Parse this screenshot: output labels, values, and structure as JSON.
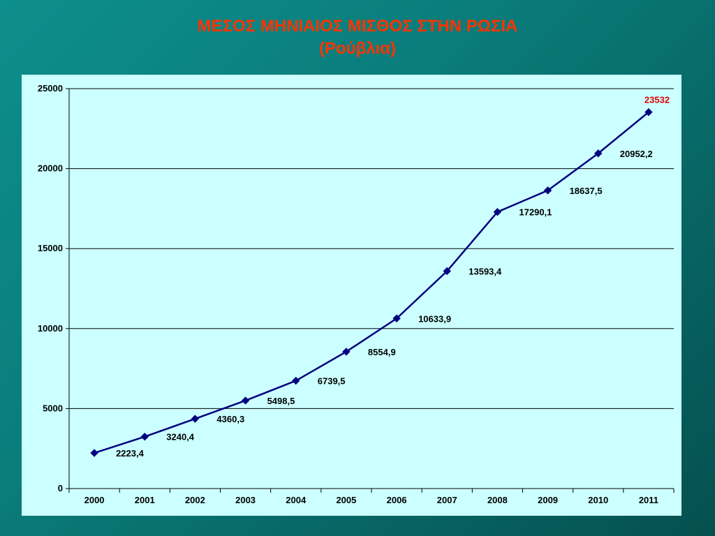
{
  "slide": {
    "title_line1": "ΜΕΣΟΣ ΜΗΝΙΑΙΟΣ ΜΙΣΘΟΣ ΣΤΗΝ ΡΩΣΙΑ",
    "title_line2": "(Ρούβλια)"
  },
  "chart_data": {
    "type": "line",
    "title": "ΜΕΣΟΣ ΜΗΝΙΑΙΟΣ ΜΙΣΘΟΣ ΣΤΗΝ ΡΩΣΙΑ",
    "subtitle": "(Ρούβλια)",
    "xlabel": "",
    "ylabel": "",
    "categories": [
      "2000",
      "2001",
      "2002",
      "2003",
      "2004",
      "2005",
      "2006",
      "2007",
      "2008",
      "2009",
      "2010",
      "2011"
    ],
    "values": [
      2223.4,
      3240.4,
      4360.3,
      5498.5,
      6739.5,
      8554.9,
      10633.9,
      13593.4,
      17290.1,
      18637.5,
      20952.2,
      23532
    ],
    "data_labels": [
      "2223,4",
      "3240,4",
      "4360,3",
      "5498,5",
      "6739,5",
      "8554,9",
      "10633,9",
      "13593,4",
      "17290,1",
      "18637,5",
      "20952,2",
      "23532"
    ],
    "ylim": [
      0,
      25000
    ],
    "yticks": [
      "0",
      "5000",
      "10000",
      "15000",
      "20000",
      "25000"
    ],
    "grid": true,
    "legend": false,
    "colors": {
      "line": "#000080",
      "marker": "#000080",
      "highlight_label": "#e00000",
      "plot_background": "#ccffff",
      "title": "#ff3300"
    }
  }
}
